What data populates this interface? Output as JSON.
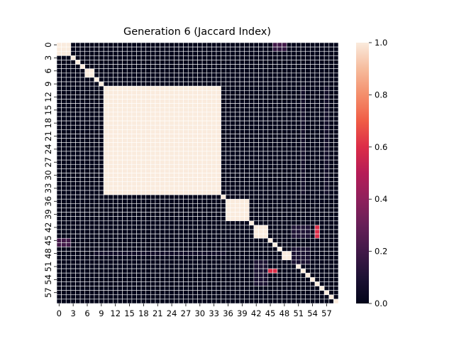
{
  "chart_data": {
    "type": "heatmap",
    "title": "Generation 6 (Jaccard Index)",
    "n": 60,
    "x_ticks": [
      "0",
      "3",
      "6",
      "9",
      "12",
      "15",
      "18",
      "21",
      "24",
      "27",
      "30",
      "33",
      "36",
      "39",
      "42",
      "45",
      "48",
      "51",
      "54",
      "57"
    ],
    "y_ticks": [
      "0",
      "3",
      "6",
      "9",
      "12",
      "15",
      "18",
      "21",
      "24",
      "27",
      "30",
      "33",
      "36",
      "39",
      "42",
      "45",
      "48",
      "51",
      "54",
      "57"
    ],
    "colorbar": {
      "range": [
        0.0,
        1.0
      ],
      "ticks": [
        "0.0",
        "0.2",
        "0.4",
        "0.6",
        "0.8",
        "1.0"
      ]
    },
    "colormap": "rocket",
    "grid_line_color": "#ffffff",
    "blocks": [
      {
        "rows": [
          0,
          2
        ],
        "cols": [
          0,
          2
        ],
        "value": 1.0
      },
      {
        "rows": [
          3,
          3
        ],
        "cols": [
          3,
          3
        ],
        "value": 1.0
      },
      {
        "rows": [
          4,
          4
        ],
        "cols": [
          4,
          4
        ],
        "value": 1.0
      },
      {
        "rows": [
          5,
          5
        ],
        "cols": [
          5,
          5
        ],
        "value": 1.0
      },
      {
        "rows": [
          6,
          7
        ],
        "cols": [
          6,
          7
        ],
        "value": 1.0
      },
      {
        "rows": [
          8,
          8
        ],
        "cols": [
          8,
          8
        ],
        "value": 1.0
      },
      {
        "rows": [
          9,
          9
        ],
        "cols": [
          9,
          9
        ],
        "value": 1.0
      },
      {
        "rows": [
          10,
          34
        ],
        "cols": [
          10,
          34
        ],
        "value": 1.0
      },
      {
        "rows": [
          35,
          35
        ],
        "cols": [
          35,
          35
        ],
        "value": 1.0
      },
      {
        "rows": [
          36,
          40
        ],
        "cols": [
          36,
          40
        ],
        "value": 1.0
      },
      {
        "rows": [
          41,
          41
        ],
        "cols": [
          41,
          41
        ],
        "value": 1.0
      },
      {
        "rows": [
          42,
          44
        ],
        "cols": [
          42,
          44
        ],
        "value": 1.0
      },
      {
        "rows": [
          45,
          45
        ],
        "cols": [
          45,
          45
        ],
        "value": 1.0
      },
      {
        "rows": [
          46,
          46
        ],
        "cols": [
          46,
          46
        ],
        "value": 1.0
      },
      {
        "rows": [
          47,
          47
        ],
        "cols": [
          47,
          47
        ],
        "value": 1.0
      },
      {
        "rows": [
          48,
          49
        ],
        "cols": [
          48,
          49
        ],
        "value": 1.0
      },
      {
        "rows": [
          50,
          50
        ],
        "cols": [
          50,
          50
        ],
        "value": 1.0
      },
      {
        "rows": [
          51,
          51
        ],
        "cols": [
          51,
          51
        ],
        "value": 1.0
      },
      {
        "rows": [
          52,
          52
        ],
        "cols": [
          52,
          52
        ],
        "value": 1.0
      },
      {
        "rows": [
          53,
          53
        ],
        "cols": [
          53,
          53
        ],
        "value": 1.0
      },
      {
        "rows": [
          54,
          54
        ],
        "cols": [
          54,
          54
        ],
        "value": 1.0
      },
      {
        "rows": [
          55,
          55
        ],
        "cols": [
          55,
          55
        ],
        "value": 1.0
      },
      {
        "rows": [
          56,
          56
        ],
        "cols": [
          56,
          56
        ],
        "value": 1.0
      },
      {
        "rows": [
          57,
          57
        ],
        "cols": [
          57,
          57
        ],
        "value": 1.0
      },
      {
        "rows": [
          58,
          58
        ],
        "cols": [
          58,
          58
        ],
        "value": 1.0
      },
      {
        "rows": [
          59,
          59
        ],
        "cols": [
          59,
          59
        ],
        "value": 1.0
      },
      {
        "rows": [
          0,
          0
        ],
        "cols": [
          46,
          48
        ],
        "value": 0.2
      },
      {
        "rows": [
          1,
          1
        ],
        "cols": [
          46,
          48
        ],
        "value": 0.15
      },
      {
        "rows": [
          45,
          46
        ],
        "cols": [
          0,
          2
        ],
        "value": 0.2
      },
      {
        "rows": [
          52,
          52
        ],
        "cols": [
          43,
          46
        ],
        "value": 0.6
      },
      {
        "rows": [
          42,
          44
        ],
        "cols": [
          55,
          55
        ],
        "value": 0.6
      },
      {
        "rows": [
          42,
          44
        ],
        "cols": [
          50,
          53
        ],
        "value": 0.1
      },
      {
        "rows": [
          50,
          55
        ],
        "cols": [
          42,
          44
        ],
        "value": 0.08
      },
      {
        "rows": [
          48,
          48
        ],
        "cols": [
          8,
          35
        ],
        "value": 0.05
      },
      {
        "rows": [
          10,
          34
        ],
        "cols": [
          57,
          57
        ],
        "value": 0.05
      },
      {
        "rows": [
          10,
          34
        ],
        "cols": [
          52,
          52
        ],
        "value": 0.05
      },
      {
        "rows": [
          47,
          50
        ],
        "cols": [
          50,
          53
        ],
        "value": 0.08
      }
    ]
  }
}
